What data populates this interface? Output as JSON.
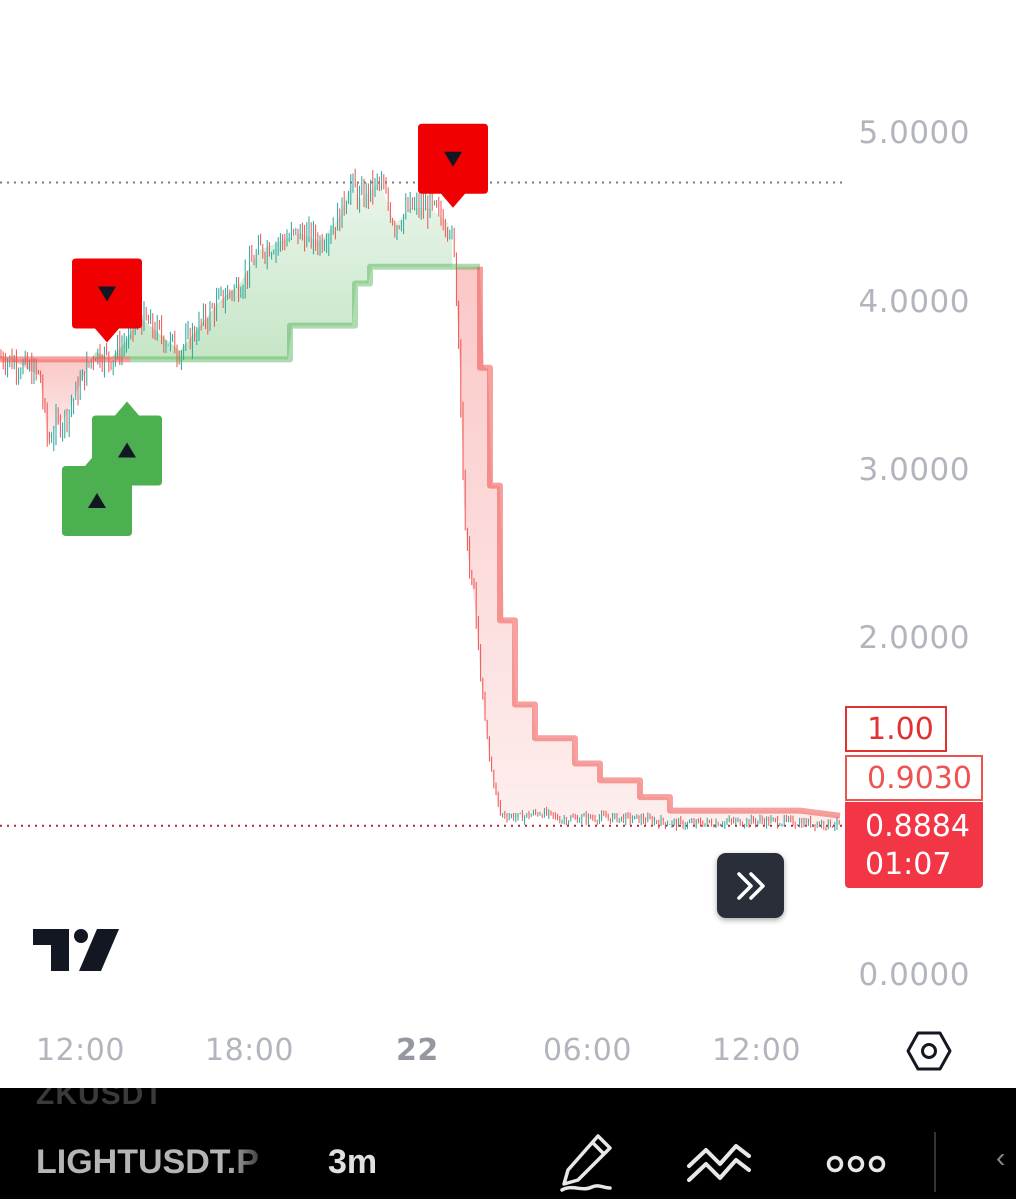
{
  "price_axis": {
    "labels": [
      "5.0000",
      "4.0000",
      "3.0000",
      "2.0000",
      "0.0000"
    ],
    "alert_tag": "1.00",
    "line_tag": "0.9030",
    "last_price": "0.8884",
    "countdown": "01:07"
  },
  "time_axis": {
    "labels": [
      "12:00",
      "18:00",
      "22",
      "06:00",
      "12:00"
    ]
  },
  "bottom_bar": {
    "previous_symbol": "ZKUSDT",
    "symbol": "LIGHTUSDT.P",
    "interval": "3m"
  },
  "colors": {
    "up": "#4caf50",
    "down": "#ef5350",
    "signal_sell": "#f00000",
    "signal_buy": "#4caf50",
    "last_price_bg": "#f23645"
  },
  "icons": [
    "tradingview-logo-icon",
    "settings-hexagon-icon",
    "scroll-to-realtime-icon",
    "pencil-drawing-icon",
    "indicators-icon",
    "more-icon"
  ],
  "chart_data": {
    "type": "candlestick",
    "symbol": "LIGHTUSDT.P",
    "interval": "3m",
    "x_ticks": [
      "12:00",
      "18:00",
      "22",
      "06:00",
      "12:00"
    ],
    "y_ticks": [
      5.0,
      4.0,
      3.0,
      2.0,
      0.0
    ],
    "close_path": [
      [
        0,
        3.67
      ],
      [
        20,
        3.62
      ],
      [
        40,
        3.55
      ],
      [
        48,
        3.15
      ],
      [
        55,
        3.25
      ],
      [
        65,
        3.3
      ],
      [
        80,
        3.5
      ],
      [
        95,
        3.7
      ],
      [
        110,
        3.65
      ],
      [
        125,
        3.75
      ],
      [
        140,
        3.9
      ],
      [
        160,
        3.8
      ],
      [
        180,
        3.7
      ],
      [
        200,
        3.85
      ],
      [
        220,
        4.0
      ],
      [
        240,
        4.1
      ],
      [
        260,
        4.3
      ],
      [
        280,
        4.35
      ],
      [
        300,
        4.4
      ],
      [
        320,
        4.35
      ],
      [
        340,
        4.5
      ],
      [
        350,
        4.7
      ],
      [
        360,
        4.6
      ],
      [
        380,
        4.7
      ],
      [
        395,
        4.45
      ],
      [
        410,
        4.55
      ],
      [
        430,
        4.55
      ],
      [
        450,
        4.45
      ],
      [
        455,
        4.2
      ],
      [
        460,
        3.6
      ],
      [
        465,
        2.6
      ],
      [
        470,
        2.4
      ],
      [
        475,
        2.2
      ],
      [
        480,
        1.8
      ],
      [
        485,
        1.5
      ],
      [
        490,
        1.25
      ],
      [
        500,
        0.95
      ],
      [
        520,
        0.93
      ],
      [
        540,
        0.96
      ],
      [
        560,
        0.92
      ],
      [
        600,
        0.93
      ],
      [
        640,
        0.92
      ],
      [
        680,
        0.89
      ],
      [
        720,
        0.9
      ],
      [
        760,
        0.91
      ],
      [
        800,
        0.9
      ],
      [
        840,
        0.8884
      ]
    ],
    "trend_line": [
      [
        0,
        3.65
      ],
      [
        130,
        3.65
      ],
      [
        290,
        3.65
      ],
      [
        290,
        3.85
      ],
      [
        355,
        3.85
      ],
      [
        355,
        4.1
      ],
      [
        370,
        4.1
      ],
      [
        370,
        4.2
      ],
      [
        455,
        4.2
      ],
      [
        480,
        4.2
      ],
      [
        480,
        3.6
      ],
      [
        490,
        3.6
      ],
      [
        490,
        2.9
      ],
      [
        500,
        2.9
      ],
      [
        500,
        2.1
      ],
      [
        515,
        2.1
      ],
      [
        515,
        1.6
      ],
      [
        535,
        1.6
      ],
      [
        535,
        1.4
      ],
      [
        575,
        1.4
      ],
      [
        575,
        1.25
      ],
      [
        600,
        1.25
      ],
      [
        600,
        1.15
      ],
      [
        640,
        1.15
      ],
      [
        640,
        1.05
      ],
      [
        670,
        1.05
      ],
      [
        670,
        0.97
      ],
      [
        800,
        0.97
      ],
      [
        840,
        0.94
      ]
    ],
    "signals": [
      {
        "type": "sell",
        "x": 107,
        "price": 3.75
      },
      {
        "type": "buy",
        "x": 97,
        "price": 3.1
      },
      {
        "type": "buy",
        "x": 127,
        "price": 3.4
      },
      {
        "type": "sell",
        "x": 453,
        "price": 4.55
      }
    ],
    "reference_lines": [
      4.7,
      0.88
    ]
  }
}
